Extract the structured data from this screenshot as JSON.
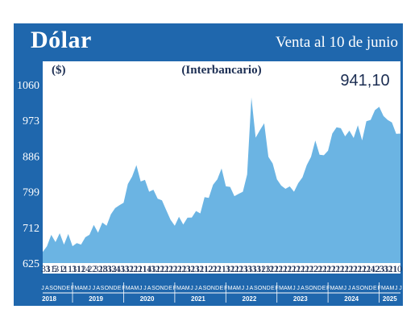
{
  "header": {
    "title": "Dólar",
    "subtitle": "Venta al 10 de junio"
  },
  "chart_data": {
    "type": "area",
    "title": "(Interbancario)",
    "ylabel": "($)",
    "ylim": [
      625,
      1060
    ],
    "yticks": [
      1060,
      973,
      886,
      799,
      712,
      625
    ],
    "last_value_label": "941,10",
    "colors": {
      "frame": "#1f67ad",
      "plot_bg": "#ffffff",
      "area": "#6bb4e3"
    },
    "grid": false,
    "x": [
      "2018-06",
      "2018-07",
      "2018-08",
      "2018-09",
      "2018-10",
      "2018-11",
      "2018-12",
      "2019-01",
      "2019-02",
      "2019-03",
      "2019-04",
      "2019-05",
      "2019-06",
      "2019-07",
      "2019-08",
      "2019-09",
      "2019-10",
      "2019-11",
      "2019-12",
      "2020-01",
      "2020-02",
      "2020-03",
      "2020-04",
      "2020-05",
      "2020-06",
      "2020-07",
      "2020-08",
      "2020-09",
      "2020-10",
      "2020-11",
      "2020-12",
      "2021-01",
      "2021-02",
      "2021-03",
      "2021-04",
      "2021-05",
      "2021-06",
      "2021-07",
      "2021-08",
      "2021-09",
      "2021-10",
      "2021-11",
      "2021-12",
      "2022-01",
      "2022-02",
      "2022-03",
      "2022-04",
      "2022-05",
      "2022-06",
      "2022-07",
      "2022-08",
      "2022-09",
      "2022-10",
      "2022-11",
      "2022-12",
      "2023-01",
      "2023-02",
      "2023-03",
      "2023-04",
      "2023-05",
      "2023-06",
      "2023-07",
      "2023-08",
      "2023-09",
      "2023-10",
      "2023-11",
      "2023-12",
      "2024-01",
      "2024-02",
      "2024-03",
      "2024-04",
      "2024-05",
      "2024-06",
      "2024-07",
      "2024-08",
      "2024-09",
      "2024-10",
      "2024-11",
      "2024-12",
      "2025-01",
      "2025-02",
      "2025-03",
      "2025-04",
      "2025-05",
      "2025-06"
    ],
    "values": [
      652,
      672,
      688,
      682,
      692,
      676,
      690,
      672,
      668,
      676,
      682,
      700,
      712,
      705,
      718,
      722,
      738,
      765,
      760,
      778,
      812,
      842,
      858,
      830,
      822,
      805,
      798,
      788,
      772,
      760,
      725,
      722,
      732,
      725,
      730,
      742,
      746,
      752,
      780,
      790,
      810,
      835,
      850,
      818,
      805,
      794,
      788,
      805,
      835,
      1035,
      925,
      955,
      960,
      890,
      862,
      835,
      808,
      812,
      806,
      805,
      814,
      840,
      858,
      890,
      918,
      895,
      882,
      905,
      935,
      962,
      948,
      940,
      942,
      936,
      955,
      930,
      965,
      980,
      992,
      1012,
      978,
      980,
      962,
      946,
      941
    ],
    "month_labels": [
      "J",
      "A",
      "S",
      "O",
      "N",
      "D",
      "E",
      "F",
      "M",
      "A",
      "M",
      "J"
    ],
    "day_labels": [
      "31",
      "31",
      "5",
      "31",
      "2",
      "11",
      "11",
      "31",
      "12",
      "14",
      "2",
      "2",
      "31",
      "28",
      "31",
      "32",
      "31",
      "41",
      "31",
      "31",
      "21",
      "21",
      "21",
      "14",
      "11",
      "31",
      "21",
      "21",
      "21",
      "21",
      "21",
      "21",
      "21",
      "31",
      "21",
      "31",
      "21",
      "12",
      "21",
      "21",
      "21",
      "11",
      "31",
      "21",
      "21",
      "21",
      "31",
      "31",
      "31",
      "32",
      "13",
      "11",
      "21",
      "21",
      "21",
      "21",
      "21",
      "21",
      "21",
      "21",
      "21",
      "22",
      "21",
      "21",
      "21",
      "21",
      "21",
      "21",
      "21",
      "21",
      "21",
      "21",
      "21",
      "21",
      "21",
      "42",
      "23",
      "31",
      "31",
      "21",
      "10"
    ],
    "years": [
      "2018",
      "2019",
      "2020",
      "2021",
      "2022",
      "2023",
      "2024",
      "2025"
    ]
  }
}
